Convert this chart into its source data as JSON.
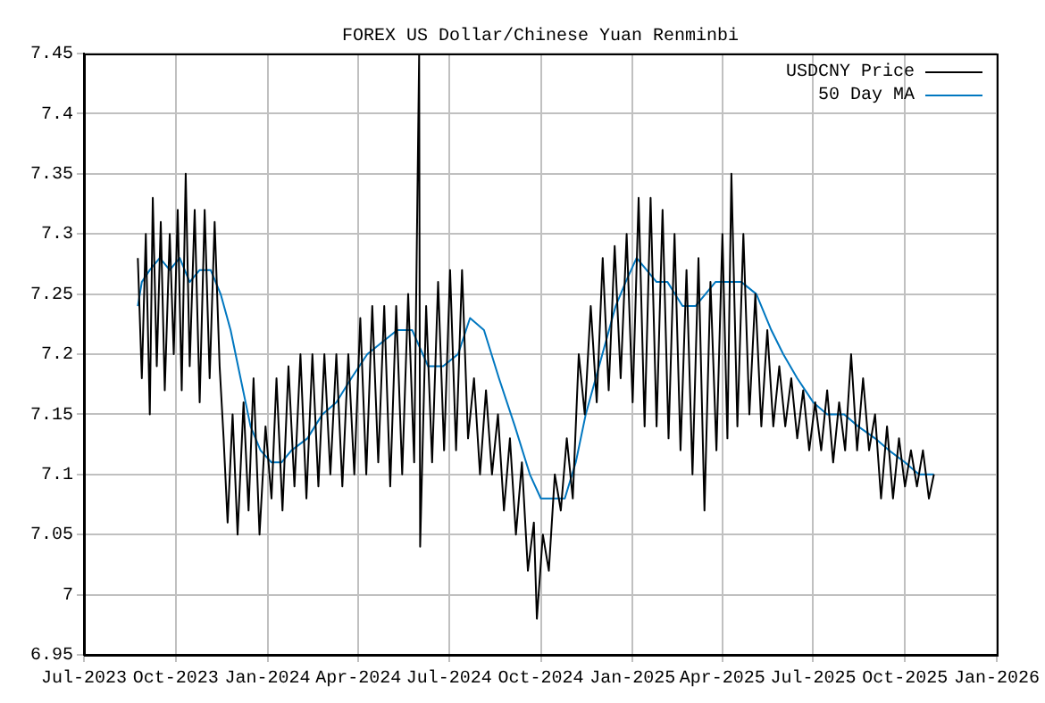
{
  "chart_data": {
    "type": "line",
    "title": "FOREX US Dollar/Chinese Yuan Renminbi",
    "xlim": [
      "2023-07-01",
      "2026-01-01"
    ],
    "xticks": [
      {
        "value": "2023-07-01",
        "label": "Jul-2023"
      },
      {
        "value": "2023-10-01",
        "label": "Oct-2023"
      },
      {
        "value": "2024-01-01",
        "label": "Jan-2024"
      },
      {
        "value": "2024-04-01",
        "label": "Apr-2024"
      },
      {
        "value": "2024-07-01",
        "label": "Jul-2024"
      },
      {
        "value": "2024-10-01",
        "label": "Oct-2024"
      },
      {
        "value": "2025-01-01",
        "label": "Jan-2025"
      },
      {
        "value": "2025-04-01",
        "label": "Apr-2025"
      },
      {
        "value": "2025-07-01",
        "label": "Jul-2025"
      },
      {
        "value": "2025-10-01",
        "label": "Oct-2025"
      },
      {
        "value": "2026-01-01",
        "label": "Jan-2026"
      }
    ],
    "ylim": [
      6.95,
      7.45
    ],
    "yticks": [
      6.95,
      7,
      7.05,
      7.1,
      7.15,
      7.2,
      7.25,
      7.3,
      7.35,
      7.4,
      7.45
    ],
    "grid": true,
    "legend": "top right",
    "marker": "none",
    "line_style": "solid",
    "series": [
      {
        "name": "USDCNY Price",
        "color": "#000000",
        "x": [
          "2023-08-24",
          "2023-08-28",
          "2023-09-01",
          "2023-09-05",
          "2023-09-08",
          "2023-09-12",
          "2023-09-16",
          "2023-09-20",
          "2023-09-25",
          "2023-09-29",
          "2023-10-03",
          "2023-10-07",
          "2023-10-11",
          "2023-10-15",
          "2023-10-20",
          "2023-10-25",
          "2023-10-30",
          "2023-11-04",
          "2023-11-09",
          "2023-11-14",
          "2023-11-18",
          "2023-11-22",
          "2023-11-27",
          "2023-12-02",
          "2023-12-08",
          "2023-12-13",
          "2023-12-18",
          "2023-12-24",
          "2023-12-30",
          "2024-01-05",
          "2024-01-10",
          "2024-01-16",
          "2024-01-22",
          "2024-01-28",
          "2024-02-03",
          "2024-02-09",
          "2024-02-15",
          "2024-02-21",
          "2024-02-27",
          "2024-03-04",
          "2024-03-10",
          "2024-03-16",
          "2024-03-22",
          "2024-03-28",
          "2024-04-03",
          "2024-04-09",
          "2024-04-15",
          "2024-04-21",
          "2024-04-27",
          "2024-05-03",
          "2024-05-09",
          "2024-05-15",
          "2024-05-21",
          "2024-05-27",
          "2024-06-01",
          "2024-06-02",
          "2024-06-08",
          "2024-06-14",
          "2024-06-20",
          "2024-06-26",
          "2024-07-02",
          "2024-07-08",
          "2024-07-14",
          "2024-07-20",
          "2024-07-26",
          "2024-08-01",
          "2024-08-07",
          "2024-08-13",
          "2024-08-19",
          "2024-08-25",
          "2024-08-31",
          "2024-09-06",
          "2024-09-12",
          "2024-09-18",
          "2024-09-24",
          "2024-09-27",
          "2024-10-03",
          "2024-10-09",
          "2024-10-15",
          "2024-10-21",
          "2024-10-27",
          "2024-11-02",
          "2024-11-08",
          "2024-11-14",
          "2024-11-20",
          "2024-11-26",
          "2024-12-02",
          "2024-12-08",
          "2024-12-14",
          "2024-12-20",
          "2024-12-26",
          "2025-01-01",
          "2025-01-07",
          "2025-01-13",
          "2025-01-19",
          "2025-01-25",
          "2025-01-31",
          "2025-02-06",
          "2025-02-12",
          "2025-02-18",
          "2025-02-24",
          "2025-03-02",
          "2025-03-08",
          "2025-03-14",
          "2025-03-20",
          "2025-03-26",
          "2025-04-01",
          "2025-04-06",
          "2025-04-10",
          "2025-04-16",
          "2025-04-22",
          "2025-04-28",
          "2025-05-04",
          "2025-05-10",
          "2025-05-16",
          "2025-05-22",
          "2025-05-28",
          "2025-06-03",
          "2025-06-09",
          "2025-06-15",
          "2025-06-21",
          "2025-06-27",
          "2025-07-03",
          "2025-07-09",
          "2025-07-15",
          "2025-07-21",
          "2025-07-27",
          "2025-08-02",
          "2025-08-08",
          "2025-08-14",
          "2025-08-20",
          "2025-08-26",
          "2025-09-01",
          "2025-09-07",
          "2025-09-13",
          "2025-09-19",
          "2025-09-25",
          "2025-10-01",
          "2025-10-07",
          "2025-10-13",
          "2025-10-19",
          "2025-10-25",
          "2025-10-30"
        ],
        "values": [
          7.28,
          7.18,
          7.3,
          7.15,
          7.33,
          7.19,
          7.31,
          7.17,
          7.3,
          7.2,
          7.32,
          7.17,
          7.35,
          7.19,
          7.32,
          7.16,
          7.32,
          7.18,
          7.31,
          7.19,
          7.13,
          7.06,
          7.15,
          7.05,
          7.16,
          7.07,
          7.18,
          7.05,
          7.14,
          7.08,
          7.18,
          7.07,
          7.19,
          7.09,
          7.2,
          7.08,
          7.2,
          7.09,
          7.2,
          7.1,
          7.2,
          7.09,
          7.2,
          7.1,
          7.23,
          7.1,
          7.24,
          7.11,
          7.24,
          7.09,
          7.24,
          7.1,
          7.25,
          7.11,
          7.45,
          7.04,
          7.24,
          7.11,
          7.26,
          7.12,
          7.27,
          7.12,
          7.27,
          7.13,
          7.18,
          7.1,
          7.17,
          7.1,
          7.15,
          7.07,
          7.13,
          7.05,
          7.11,
          7.02,
          7.06,
          6.98,
          7.05,
          7.02,
          7.1,
          7.07,
          7.13,
          7.08,
          7.2,
          7.15,
          7.24,
          7.16,
          7.28,
          7.17,
          7.29,
          7.18,
          7.3,
          7.16,
          7.33,
          7.14,
          7.33,
          7.14,
          7.32,
          7.13,
          7.3,
          7.12,
          7.27,
          7.1,
          7.28,
          7.07,
          7.26,
          7.12,
          7.3,
          7.13,
          7.35,
          7.14,
          7.3,
          7.15,
          7.25,
          7.14,
          7.22,
          7.14,
          7.19,
          7.14,
          7.18,
          7.13,
          7.17,
          7.12,
          7.16,
          7.12,
          7.17,
          7.11,
          7.16,
          7.12,
          7.2,
          7.12,
          7.18,
          7.12,
          7.15,
          7.08,
          7.14,
          7.08,
          7.13,
          7.09,
          7.12,
          7.09,
          7.12,
          7.08,
          7.1
        ]
      },
      {
        "name": "50 Day MA",
        "color": "#0077c0",
        "x": [
          "2023-08-24",
          "2023-08-28",
          "2023-09-05",
          "2023-09-15",
          "2023-09-25",
          "2023-10-05",
          "2023-10-15",
          "2023-10-25",
          "2023-11-05",
          "2023-11-15",
          "2023-11-25",
          "2023-12-05",
          "2023-12-15",
          "2023-12-25",
          "2024-01-05",
          "2024-01-15",
          "2024-01-25",
          "2024-02-10",
          "2024-02-25",
          "2024-03-10",
          "2024-03-25",
          "2024-04-10",
          "2024-04-25",
          "2024-05-10",
          "2024-05-25",
          "2024-06-10",
          "2024-06-25",
          "2024-07-10",
          "2024-07-22",
          "2024-08-05",
          "2024-08-20",
          "2024-09-05",
          "2024-09-20",
          "2024-10-01",
          "2024-10-15",
          "2024-10-25",
          "2024-11-05",
          "2024-11-15",
          "2024-11-25",
          "2024-12-05",
          "2024-12-15",
          "2024-12-25",
          "2025-01-05",
          "2025-01-15",
          "2025-01-25",
          "2025-02-05",
          "2025-02-20",
          "2025-03-05",
          "2025-03-15",
          "2025-03-25",
          "2025-04-05",
          "2025-04-20",
          "2025-05-05",
          "2025-05-20",
          "2025-06-01",
          "2025-06-15",
          "2025-07-01",
          "2025-07-15",
          "2025-08-01",
          "2025-08-15",
          "2025-09-01",
          "2025-09-15",
          "2025-10-01",
          "2025-10-15",
          "2025-10-30"
        ],
        "values": [
          7.24,
          7.26,
          7.27,
          7.28,
          7.27,
          7.28,
          7.26,
          7.27,
          7.27,
          7.25,
          7.22,
          7.18,
          7.14,
          7.12,
          7.11,
          7.11,
          7.12,
          7.13,
          7.15,
          7.16,
          7.18,
          7.2,
          7.21,
          7.22,
          7.22,
          7.19,
          7.19,
          7.2,
          7.23,
          7.22,
          7.18,
          7.14,
          7.1,
          7.08,
          7.08,
          7.08,
          7.11,
          7.15,
          7.18,
          7.21,
          7.24,
          7.26,
          7.28,
          7.27,
          7.26,
          7.26,
          7.24,
          7.24,
          7.25,
          7.26,
          7.26,
          7.26,
          7.25,
          7.22,
          7.2,
          7.18,
          7.16,
          7.15,
          7.15,
          7.14,
          7.13,
          7.12,
          7.11,
          7.1,
          7.1
        ]
      }
    ]
  }
}
